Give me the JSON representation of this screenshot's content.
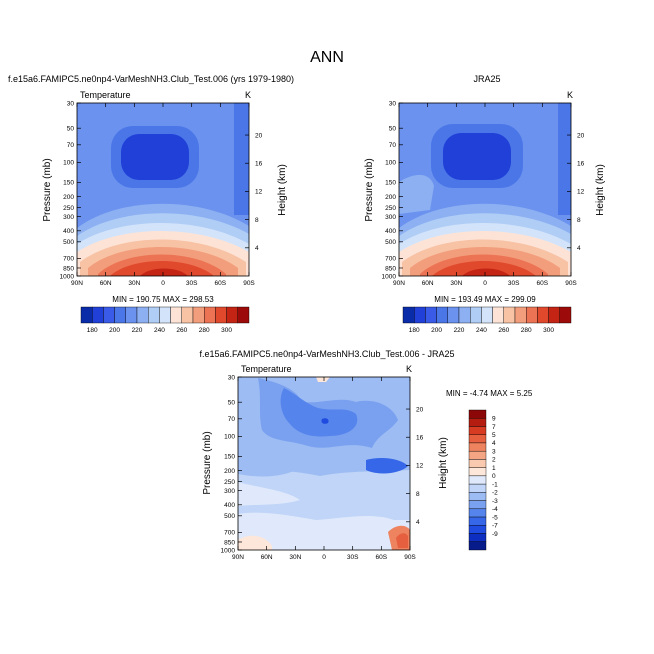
{
  "title": "ANN",
  "colors": {
    "cold_scale": [
      "#0b2ca8",
      "#2040d8",
      "#3a5ae8",
      "#4a76e8",
      "#6a92ee",
      "#8cb0f2",
      "#b0cdf6",
      "#d3e4fa",
      "#fde3d6",
      "#f8c2a4",
      "#f29e7c",
      "#ec7454",
      "#e0492c",
      "#c42414",
      "#9c0a0a"
    ],
    "diff_scale": [
      "#081b8a",
      "#0d2ec0",
      "#1f4be0",
      "#3567e8",
      "#5584ec",
      "#7aa1f0",
      "#9dbcf3",
      "#c0d5f7",
      "#dfe9fb",
      "#fde6da",
      "#f9c9b0",
      "#f4a684",
      "#ee8360",
      "#e6603f",
      "#d73b22",
      "#b51d10",
      "#8c0808"
    ]
  },
  "chart_data": [
    {
      "type": "heatmap",
      "title": "f.e15a6.FAMIPC5.ne0np4-VarMeshNH3.Club_Test.006 (yrs 1979-1980)",
      "variable": "Temperature",
      "units": "K",
      "ylabel": "Pressure (mb)",
      "y2label": "Height (km)",
      "x_ticks": [
        "90N",
        "60N",
        "30N",
        "0",
        "30S",
        "60S",
        "90S"
      ],
      "y_ticks": [
        "30",
        "50",
        "70",
        "100",
        "150",
        "200",
        "250",
        "300",
        "400",
        "500",
        "700",
        "850",
        "1000"
      ],
      "y2_ticks": [
        "20",
        "16",
        "12",
        "8",
        "4"
      ],
      "min_max_text": "MIN = 190.75  MAX = 298.53",
      "min": 190.75,
      "max": 298.53,
      "colorbar_labels": [
        "180",
        "190",
        "200",
        "210",
        "220",
        "230",
        "240",
        "250",
        "260",
        "270",
        "280",
        "290",
        "300"
      ]
    },
    {
      "type": "heatmap",
      "title": "JRA25",
      "variable": "",
      "units": "K",
      "ylabel": "Pressure (mb)",
      "y2label": "Height (km)",
      "x_ticks": [
        "90N",
        "60N",
        "30N",
        "0",
        "30S",
        "60S",
        "90S"
      ],
      "y_ticks": [
        "30",
        "50",
        "70",
        "100",
        "150",
        "200",
        "250",
        "300",
        "400",
        "500",
        "700",
        "850",
        "1000"
      ],
      "y2_ticks": [
        "20",
        "16",
        "12",
        "8",
        "4"
      ],
      "min_max_text": "MIN = 193.49  MAX = 299.09",
      "min": 193.49,
      "max": 299.09,
      "colorbar_labels": [
        "180",
        "190",
        "200",
        "210",
        "220",
        "230",
        "240",
        "250",
        "260",
        "270",
        "280",
        "290",
        "300"
      ]
    },
    {
      "type": "heatmap",
      "title": "f.e15a6.FAMIPC5.ne0np4-VarMeshNH3.Club_Test.006 - JRA25",
      "variable": "Temperature",
      "units": "K",
      "ylabel": "Pressure (mb)",
      "y2label": "Height (km)",
      "x_ticks": [
        "90N",
        "60N",
        "30N",
        "0",
        "30S",
        "60S",
        "90S"
      ],
      "y_ticks": [
        "30",
        "50",
        "70",
        "100",
        "150",
        "200",
        "250",
        "300",
        "400",
        "500",
        "700",
        "850",
        "1000"
      ],
      "y2_ticks": [
        "20",
        "16",
        "12",
        "8",
        "4"
      ],
      "min_max_text": "MIN = -4.74  MAX =  5.25",
      "min": -4.74,
      "max": 5.25,
      "colorbar_labels": [
        "9",
        "7",
        "5",
        "4",
        "3",
        "2",
        "1",
        "0",
        "-1",
        "-2",
        "-3",
        "-4",
        "-5",
        "-7",
        "-9"
      ]
    }
  ]
}
